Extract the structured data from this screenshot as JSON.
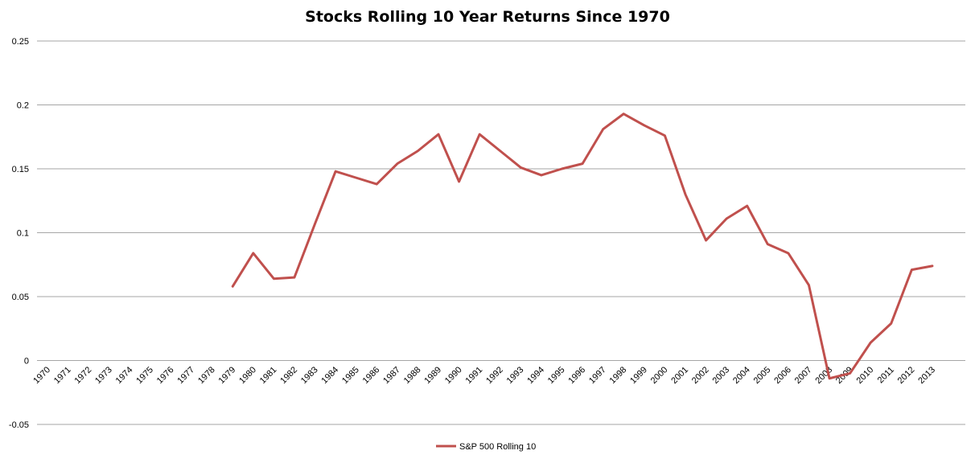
{
  "chart_data": {
    "type": "line",
    "title": "Stocks Rolling 10 Year Returns Since 1970",
    "xlabel": "",
    "ylabel": "",
    "categories": [
      "1970",
      "1971",
      "1972",
      "1973",
      "1974",
      "1975",
      "1976",
      "1977",
      "1978",
      "1979",
      "1980",
      "1981",
      "1982",
      "1983",
      "1984",
      "1985",
      "1986",
      "1987",
      "1988",
      "1989",
      "1990",
      "1991",
      "1992",
      "1993",
      "1994",
      "1995",
      "1996",
      "1997",
      "1998",
      "1999",
      "2000",
      "2001",
      "2002",
      "2003",
      "2004",
      "2005",
      "2006",
      "2007",
      "2008",
      "2009",
      "2010",
      "2011",
      "2012",
      "2013"
    ],
    "yticks": [
      "-0.05",
      "0",
      "0.05",
      "0.1",
      "0.15",
      "0.2",
      "0.25"
    ],
    "ylim": [
      -0.05,
      0.25
    ],
    "grid": true,
    "legend_position": "bottom",
    "series": [
      {
        "name": "S&P 500 Rolling 10",
        "color": "#c0504d",
        "values": [
          null,
          null,
          null,
          null,
          null,
          null,
          null,
          null,
          null,
          0.058,
          0.084,
          0.064,
          0.065,
          0.107,
          0.148,
          0.143,
          0.138,
          0.154,
          0.164,
          0.177,
          0.14,
          0.177,
          0.164,
          0.151,
          0.145,
          0.15,
          0.154,
          0.181,
          0.193,
          0.184,
          0.176,
          0.13,
          0.094,
          0.111,
          0.121,
          0.091,
          0.084,
          0.059,
          -0.014,
          -0.01,
          0.014,
          0.029,
          0.071,
          0.074
        ]
      }
    ]
  }
}
